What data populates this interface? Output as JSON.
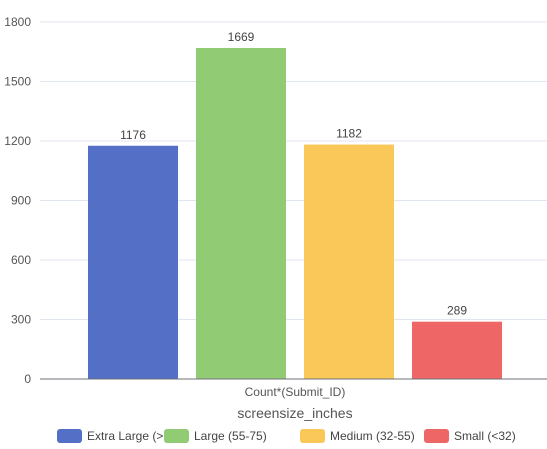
{
  "chart_data": {
    "type": "bar",
    "xlabel": "Count*(Submit_ID)",
    "legend_title": "screensize_inches",
    "legend_position": "bottom",
    "grid": true,
    "ylim": [
      0,
      1800
    ],
    "yticks": [
      0,
      300,
      600,
      900,
      1200,
      1500,
      1800
    ],
    "series": [
      {
        "name": "Extra Large (>75)",
        "value": 1176,
        "color": "#5470c6"
      },
      {
        "name": "Large (55-75)",
        "value": 1669,
        "color": "#91cc75"
      },
      {
        "name": "Medium (32-55)",
        "value": 1182,
        "color": "#fac858"
      },
      {
        "name": "Small (<32)",
        "value": 289,
        "color": "#ee6666"
      }
    ]
  }
}
